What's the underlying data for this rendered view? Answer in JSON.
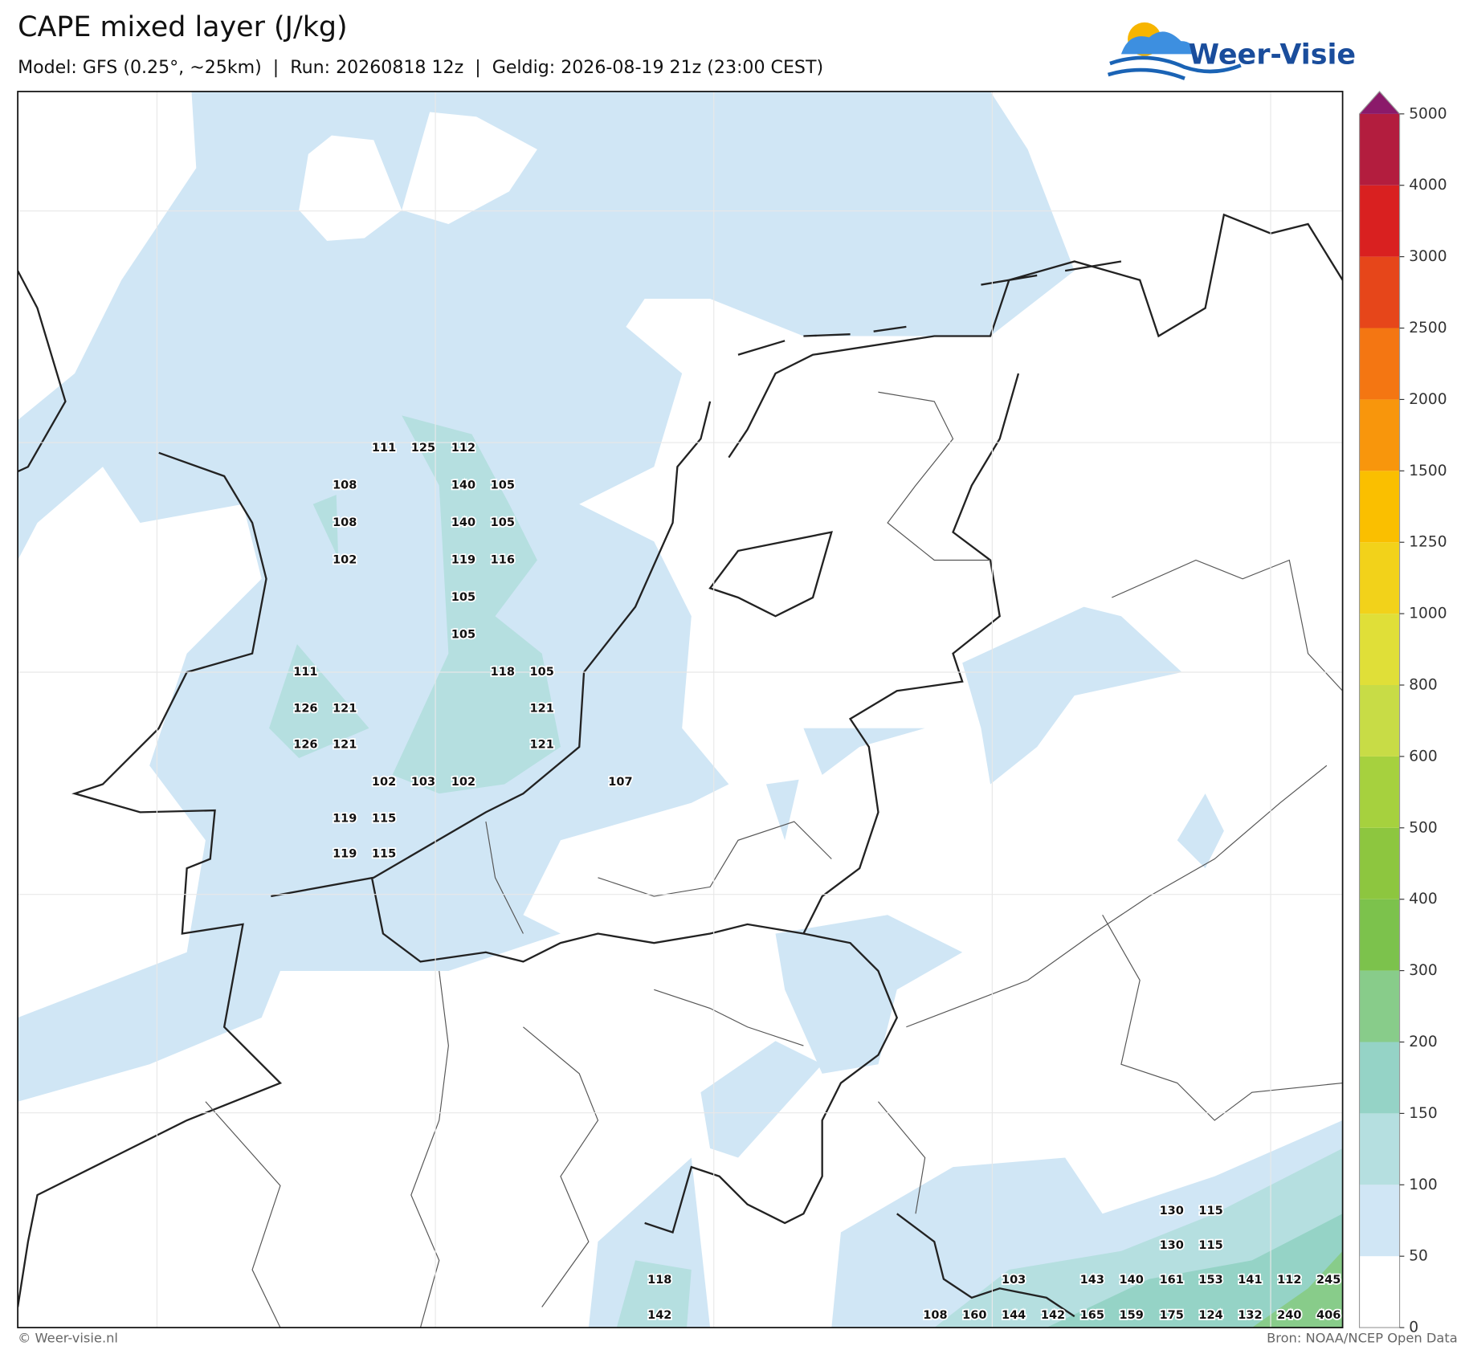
{
  "header": {
    "title": "CAPE mixed layer (J/kg)",
    "subtitle": "Model: GFS (0.25°, ~25km)  |  Run: 20260818 12z  |  Geldig: 2026-08-19 21z (23:00 CEST)",
    "logo": "Weer-Visie"
  },
  "map": {
    "labels": [
      111,
      125,
      112,
      108,
      140,
      105,
      108,
      140,
      105,
      102,
      119,
      116,
      105,
      105,
      111,
      118,
      105,
      126,
      121,
      121,
      126,
      121,
      121,
      102,
      103,
      102,
      107,
      119,
      115,
      119,
      115,
      130,
      115,
      130,
      115,
      118,
      103,
      143,
      140,
      161,
      153,
      141,
      112,
      245,
      142,
      108,
      160,
      144,
      142,
      165,
      159,
      175,
      124,
      132,
      240,
      406
    ]
  },
  "colorbar": {
    "ticks": [
      0,
      50,
      100,
      150,
      200,
      300,
      400,
      500,
      600,
      800,
      1000,
      1250,
      1500,
      2000,
      2500,
      3000,
      4000,
      5000
    ],
    "colors": [
      "#ffffff",
      "#d0e6f5",
      "#b5dfe0",
      "#95d3c6",
      "#88cc8a",
      "#7cc24c",
      "#8dc63f",
      "#a6d13e",
      "#c8dc46",
      "#e0df38",
      "#f2d21a",
      "#fabf00",
      "#f8960c",
      "#f47612",
      "#e6461a",
      "#d92020",
      "#b31d3e",
      "#8b1a6a"
    ]
  },
  "footer": {
    "left": "© Weer-visie.nl",
    "right": "Bron: NOAA/NCEP Open Data"
  }
}
